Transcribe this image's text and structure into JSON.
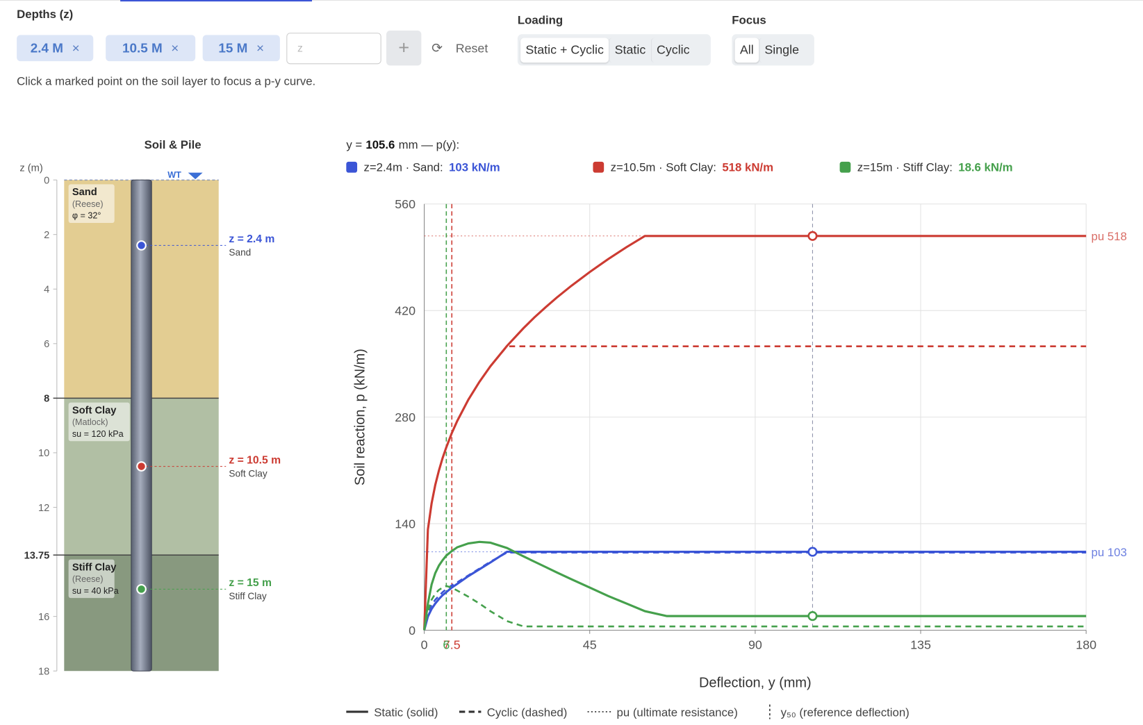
{
  "depths": {
    "label": "Depths (z)",
    "chips": [
      "2.4 M",
      "10.5 M",
      "15 M"
    ],
    "placeholder": "z",
    "reset": "Reset"
  },
  "loading": {
    "label": "Loading",
    "options": [
      "Static + Cyclic",
      "Static",
      "Cyclic"
    ]
  },
  "focus": {
    "label": "Focus",
    "options": [
      "All",
      "Single"
    ]
  },
  "hint": "Click a marked point on the soil layer to focus a p-y curve.",
  "chart_data": [
    {
      "type": "soil-profile",
      "title": "Soil & Pile",
      "y_label": "z (m)",
      "ylim": [
        0,
        18
      ],
      "yticks": [
        0,
        2,
        4,
        6,
        10,
        12,
        16,
        18
      ],
      "water_table": {
        "label": "WT",
        "z": 0
      },
      "layers": [
        {
          "name": "Sand",
          "model": "(Reese)",
          "param": "φ = 32°",
          "top": 0,
          "bottom": 8,
          "color": "#e3cd92"
        },
        {
          "name": "Soft Clay",
          "model": "(Matlock)",
          "param": "su = 120 kPa",
          "top": 8,
          "bottom": 13.75,
          "color": "#b1bfa4"
        },
        {
          "name": "Stiff Clay",
          "model": "(Reese)",
          "param": "su = 40 kPa",
          "top": 13.75,
          "bottom": 18,
          "color": "#88997f"
        }
      ],
      "points": [
        {
          "z": 2.4,
          "label": "z = 2.4 m",
          "sublabel": "Sand",
          "color": "#3b55d6"
        },
        {
          "z": 10.5,
          "label": "z = 10.5 m",
          "sublabel": "Soft Clay",
          "color": "#cc3b32"
        },
        {
          "z": 15,
          "label": "z = 15 m",
          "sublabel": "Stiff Clay",
          "color": "#45a04c"
        }
      ]
    },
    {
      "type": "line",
      "cursor": {
        "prefix": "y =",
        "value": 105.6,
        "suffix": "mm — p(y):"
      },
      "x_label": "Deflection, y (mm)",
      "y_label": "Soil reaction, p (kN/m)",
      "xlim": [
        0,
        180
      ],
      "ylim": [
        0,
        560
      ],
      "xticks": [
        0,
        45,
        90,
        135,
        180
      ],
      "yticks": [
        0,
        140,
        280,
        420,
        560
      ],
      "grid": true,
      "x": [
        0,
        1,
        2,
        3,
        4,
        5,
        6,
        7.5,
        9,
        12,
        15,
        18,
        22.5,
        27,
        30,
        33,
        36,
        40,
        45,
        50,
        55,
        60,
        66,
        70,
        80,
        90,
        105.6,
        120,
        135,
        150,
        165,
        180
      ],
      "series": [
        {
          "name": "z=2.4m · Sand:",
          "color": "#3b55d6",
          "readout": "103 kN/m",
          "pu": {
            "value": 103,
            "label": "pu 103"
          },
          "values": [
            0,
            18,
            28,
            35,
            41,
            46,
            50,
            56,
            61,
            71,
            80,
            89,
            103,
            103,
            103,
            103,
            103,
            103,
            103,
            103,
            103,
            103,
            103,
            103,
            103,
            103,
            103,
            103,
            103,
            103,
            103,
            103
          ],
          "cyclic_values": [
            0,
            24,
            33,
            40,
            45,
            50,
            54,
            59,
            63,
            72,
            81,
            90,
            102,
            102,
            102,
            102,
            102,
            102,
            102,
            102,
            102,
            102,
            102,
            102,
            102,
            102,
            102,
            102,
            102,
            102,
            102,
            102
          ]
        },
        {
          "name": "z=10.5m · Soft Clay:",
          "color": "#cc3b32",
          "readout": "518 kN/m",
          "pu": {
            "value": 518,
            "label": "pu 518"
          },
          "y50": 7.5,
          "values": [
            0,
            132.3,
            166.7,
            190.8,
            210,
            226.3,
            240.4,
            259,
            275.2,
            302.9,
            326.3,
            346.8,
            373.5,
            396.9,
            411.1,
            424.4,
            436.9,
            452.5,
            470.6,
            487.5,
            503.2,
            518,
            518,
            518,
            518,
            518,
            518,
            518,
            518,
            518,
            518,
            518
          ],
          "cyclic_values": [
            0,
            132.3,
            166.7,
            190.8,
            210,
            226.3,
            240.4,
            259,
            275.2,
            302.9,
            326.3,
            346.8,
            373,
            373,
            373,
            373,
            373,
            373,
            373,
            373,
            373,
            373,
            373,
            373,
            373,
            373,
            373,
            373,
            373,
            373,
            373,
            373
          ]
        },
        {
          "name": "z=15m · Stiff Clay:",
          "color": "#45a04c",
          "readout": "18.6 kN/m",
          "y50": 6,
          "values": [
            0,
            35,
            60,
            75,
            85,
            92,
            98,
            104,
            109,
            114,
            116,
            115,
            108,
            97,
            90,
            83,
            76,
            67,
            56,
            45,
            35,
            25,
            18.6,
            18.6,
            18.6,
            18.6,
            18.6,
            18.6,
            18.6,
            18.6,
            18.6,
            18.6
          ],
          "cyclic_values": [
            0,
            25,
            40,
            48,
            53,
            56,
            58,
            56,
            52,
            44,
            35,
            25,
            12,
            5,
            5,
            5,
            5,
            5,
            5,
            5,
            5,
            5,
            5,
            5,
            5,
            5,
            5,
            5,
            5,
            5,
            5,
            5
          ]
        }
      ],
      "legend": [
        "Static (solid)",
        "Cyclic (dashed)",
        "pu (ultimate resistance)",
        "y₅₀ (reference deflection)"
      ]
    }
  ]
}
